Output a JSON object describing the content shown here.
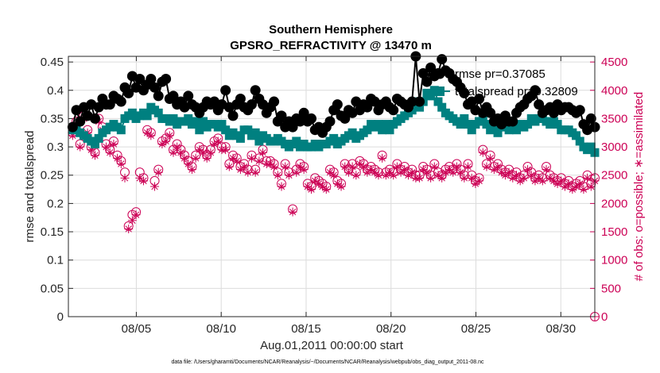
{
  "chart_data": {
    "type": "line",
    "title": "Southern Hemisphere",
    "subtitle": "GPSRO_REFRACTIVITY @ 13470 m",
    "xlabel": "Aug.01,2011 00:00:00 start",
    "ylabel_left": "rmse and totalspread",
    "ylabel_right": "# of obs: o=possible; ∗=assimilated",
    "footer": "data file: /Users/gharamti/Documents/NCAR/Reanalysis/~/Documents/NCAR/Reanalysis/webpub/obs_diag_output_2011-08.nc",
    "xlim": [
      1.0,
      32.0
    ],
    "ylim_left": [
      0,
      0.46
    ],
    "ylim_right": [
      0,
      4600
    ],
    "x_ticks": [
      {
        "value": 5,
        "label": "08/05"
      },
      {
        "value": 10,
        "label": "08/10"
      },
      {
        "value": 15,
        "label": "08/15"
      },
      {
        "value": 20,
        "label": "08/20"
      },
      {
        "value": 25,
        "label": "08/25"
      },
      {
        "value": 30,
        "label": "08/30"
      }
    ],
    "y_ticks_left": [
      {
        "value": 0,
        "label": "0"
      },
      {
        "value": 0.05,
        "label": "0.05"
      },
      {
        "value": 0.1,
        "label": "0.1"
      },
      {
        "value": 0.15,
        "label": "0.15"
      },
      {
        "value": 0.2,
        "label": "0.2"
      },
      {
        "value": 0.25,
        "label": "0.25"
      },
      {
        "value": 0.3,
        "label": "0.3"
      },
      {
        "value": 0.35,
        "label": "0.35"
      },
      {
        "value": 0.4,
        "label": "0.4"
      },
      {
        "value": 0.45,
        "label": "0.45"
      }
    ],
    "y_ticks_right": [
      {
        "value": 0,
        "label": "0"
      },
      {
        "value": 500,
        "label": "500"
      },
      {
        "value": 1000,
        "label": "1000"
      },
      {
        "value": 1500,
        "label": "1500"
      },
      {
        "value": 2000,
        "label": "2000"
      },
      {
        "value": 2500,
        "label": "2500"
      },
      {
        "value": 3000,
        "label": "3000"
      },
      {
        "value": 3500,
        "label": "3500"
      },
      {
        "value": 4000,
        "label": "4000"
      },
      {
        "value": 4500,
        "label": "4500"
      }
    ],
    "grid": true,
    "legend": {
      "position": "top-right",
      "entries": [
        {
          "label": "rmse pr=0.37085",
          "color": "#000000",
          "marker": "circle"
        },
        {
          "label": "totalspread pr=0.32809",
          "color": "#008080",
          "marker": "square"
        }
      ]
    },
    "colors": {
      "rmse": "#000000",
      "totalspread": "#008080",
      "obs": "#CC0055"
    },
    "series": [
      {
        "name": "rmse",
        "axis": "left",
        "values": [
          0.335,
          0.365,
          0.345,
          0.37,
          0.355,
          0.375,
          0.35,
          0.37,
          0.385,
          0.375,
          0.375,
          0.39,
          0.385,
          0.38,
          0.405,
          0.395,
          0.425,
          0.405,
          0.42,
          0.4,
          0.41,
          0.42,
          0.405,
          0.39,
          0.415,
          0.42,
          0.385,
          0.39,
          0.375,
          0.38,
          0.37,
          0.39,
          0.375,
          0.37,
          0.36,
          0.37,
          0.38,
          0.375,
          0.38,
          0.365,
          0.375,
          0.4,
          0.37,
          0.355,
          0.375,
          0.385,
          0.37,
          0.365,
          0.375,
          0.4,
          0.385,
          0.375,
          0.36,
          0.37,
          0.38,
          0.345,
          0.355,
          0.335,
          0.345,
          0.335,
          0.35,
          0.345,
          0.36,
          0.345,
          0.35,
          0.33,
          0.335,
          0.325,
          0.335,
          0.345,
          0.365,
          0.375,
          0.355,
          0.35,
          0.365,
          0.36,
          0.38,
          0.365,
          0.375,
          0.37,
          0.385,
          0.38,
          0.365,
          0.375,
          0.38,
          0.37,
          0.365,
          0.385,
          0.38,
          0.375,
          0.37,
          0.38,
          0.46,
          0.38,
          0.43,
          0.415,
          0.44,
          0.425,
          0.43,
          0.455,
          0.435,
          0.43,
          0.42,
          0.415,
          0.405,
          0.395,
          0.375,
          0.38,
          0.365,
          0.385,
          0.36,
          0.37,
          0.36,
          0.345,
          0.35,
          0.34,
          0.355,
          0.345,
          0.345,
          0.36,
          0.37,
          0.375,
          0.385,
          0.39,
          0.4,
          0.375,
          0.36,
          0.365,
          0.37,
          0.36,
          0.375,
          0.365,
          0.37,
          0.37,
          0.365,
          0.36,
          0.365,
          0.34,
          0.33,
          0.35,
          0.335
        ]
      },
      {
        "name": "totalspread",
        "axis": "left",
        "values": [
          0.33,
          0.33,
          0.325,
          0.32,
          0.315,
          0.31,
          0.305,
          0.315,
          0.325,
          0.33,
          0.335,
          0.34,
          0.335,
          0.33,
          0.35,
          0.355,
          0.36,
          0.35,
          0.355,
          0.36,
          0.355,
          0.37,
          0.365,
          0.36,
          0.35,
          0.35,
          0.345,
          0.35,
          0.34,
          0.345,
          0.345,
          0.35,
          0.34,
          0.345,
          0.33,
          0.345,
          0.335,
          0.34,
          0.34,
          0.335,
          0.34,
          0.33,
          0.32,
          0.325,
          0.32,
          0.315,
          0.33,
          0.33,
          0.32,
          0.325,
          0.31,
          0.32,
          0.315,
          0.31,
          0.31,
          0.315,
          0.31,
          0.305,
          0.3,
          0.305,
          0.31,
          0.3,
          0.305,
          0.3,
          0.3,
          0.305,
          0.3,
          0.305,
          0.305,
          0.31,
          0.315,
          0.305,
          0.31,
          0.315,
          0.32,
          0.325,
          0.315,
          0.32,
          0.325,
          0.33,
          0.34,
          0.335,
          0.34,
          0.33,
          0.34,
          0.33,
          0.34,
          0.345,
          0.35,
          0.355,
          0.36,
          0.365,
          0.38,
          0.37,
          0.38,
          0.395,
          0.39,
          0.4,
          0.38,
          0.37,
          0.36,
          0.355,
          0.35,
          0.345,
          0.34,
          0.35,
          0.34,
          0.33,
          0.34,
          0.345,
          0.35,
          0.34,
          0.33,
          0.335,
          0.325,
          0.335,
          0.34,
          0.33,
          0.335,
          0.33,
          0.34,
          0.335,
          0.34,
          0.35,
          0.345,
          0.35,
          0.35,
          0.345,
          0.34,
          0.345,
          0.34,
          0.33,
          0.33,
          0.33,
          0.325,
          0.32,
          0.31,
          0.3,
          0.295,
          0.3,
          0.29
        ]
      },
      {
        "name": "obs_possible",
        "axis": "right",
        "values": [
          3250,
          3450,
          3050,
          3550,
          3300,
          3000,
          2900,
          3500,
          3350,
          3050,
          2950,
          3100,
          2850,
          2750,
          2550,
          1600,
          1800,
          1850,
          2550,
          2450,
          3300,
          3250,
          2400,
          2600,
          3100,
          3150,
          3250,
          2950,
          3050,
          2950,
          2850,
          2750,
          2650,
          2850,
          3000,
          2950,
          2850,
          2950,
          3100,
          3150,
          3000,
          3000,
          2700,
          2850,
          2800,
          2650,
          2700,
          2600,
          2850,
          2600,
          2800,
          2950,
          2750,
          2750,
          2700,
          2550,
          2350,
          2700,
          2550,
          1900,
          2600,
          2700,
          2650,
          2350,
          2300,
          2450,
          2400,
          2350,
          2300,
          2600,
          2550,
          2400,
          2350,
          2700,
          2600,
          2700,
          2550,
          2750,
          2700,
          2600,
          2650,
          2600,
          2550,
          2850,
          2550,
          2600,
          2550,
          2700,
          2600,
          2650,
          2550,
          2600,
          2500,
          2500,
          2650,
          2600,
          2500,
          2700,
          2550,
          2500,
          2600,
          2650,
          2600,
          2700,
          2600,
          2500,
          2700,
          2500,
          2400,
          2450,
          2950,
          2700,
          2850,
          2650,
          2700,
          2600,
          2550,
          2600,
          2500,
          2550,
          2450,
          2500,
          2650,
          2550,
          2450,
          2500,
          2450,
          2650,
          2500,
          2450,
          2400,
          2450,
          2350,
          2400,
          2300,
          2350,
          2400,
          2300,
          2500,
          2350,
          2450
        ]
      },
      {
        "name": "obs_assimilated",
        "axis": "right",
        "values": [
          3200,
          3400,
          3000,
          3500,
          3250,
          2950,
          2850,
          3450,
          3300,
          3000,
          2900,
          3050,
          2800,
          2700,
          2450,
          1550,
          1700,
          1800,
          2450,
          2400,
          3250,
          3200,
          2300,
          2550,
          3050,
          3100,
          3200,
          2900,
          3000,
          2900,
          2800,
          2700,
          2600,
          2800,
          2950,
          2900,
          2800,
          2900,
          3050,
          3100,
          2950,
          2950,
          2650,
          2800,
          2750,
          2600,
          2650,
          2550,
          2800,
          2550,
          2750,
          2900,
          2700,
          2700,
          2650,
          2500,
          2300,
          2650,
          2500,
          1850,
          2550,
          2650,
          2600,
          2300,
          2250,
          2400,
          2350,
          2300,
          2250,
          2550,
          2500,
          2350,
          2300,
          2650,
          2550,
          2650,
          2500,
          2700,
          2650,
          2550,
          2600,
          2550,
          2500,
          2800,
          2500,
          2550,
          2500,
          2650,
          2550,
          2600,
          2500,
          2550,
          2450,
          2450,
          2600,
          2550,
          2450,
          2650,
          2500,
          2450,
          2550,
          2600,
          2550,
          2650,
          2550,
          2450,
          2650,
          2450,
          2350,
          2400,
          2900,
          2650,
          2800,
          2600,
          2650,
          2550,
          2500,
          2550,
          2450,
          2500,
          2400,
          2450,
          2600,
          2500,
          2400,
          2450,
          2400,
          2600,
          2450,
          2400,
          2350,
          2400,
          2300,
          2350,
          2250,
          2300,
          2350,
          2250,
          2450,
          2300,
          2400
        ]
      }
    ]
  }
}
